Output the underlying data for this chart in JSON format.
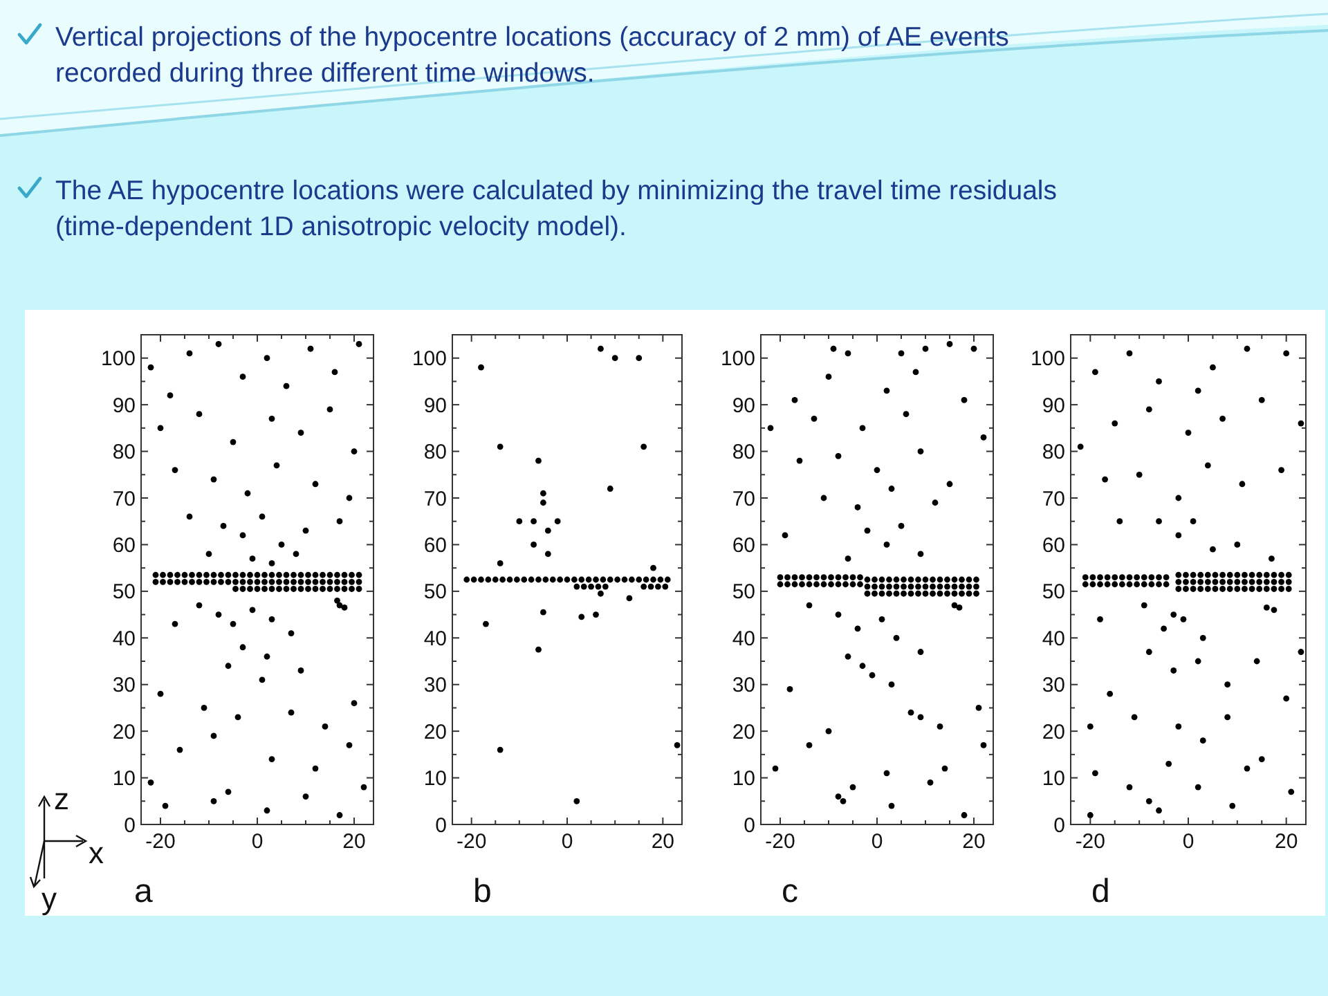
{
  "chart_data": [
    {
      "type": "other",
      "annotations": [
        "Vertical projections of the hypocentre locations (accuracy of 2 mm) of AE events recorded during three different time windows.",
        "The AE hypocentre locations were calculated by minimizing the travel time residuals (time-dependent 1D anisotropic velocity model)."
      ]
    },
    {
      "type": "scatter",
      "title": "a",
      "annotations": [
        "z",
        "x",
        "y"
      ],
      "xlim": [
        -24,
        24
      ],
      "ylim": [
        0,
        105
      ],
      "xticks": [
        -20,
        {
          "value": -15,
          "label": null
        },
        {
          "value": -10,
          "label": null
        },
        {
          "value": -5,
          "label": null
        },
        0,
        {
          "value": 5,
          "label": null
        },
        {
          "value": 10,
          "label": null
        },
        {
          "value": 15,
          "label": null
        },
        20
      ],
      "yticks": [
        0,
        {
          "value": 5,
          "label": null
        },
        10,
        {
          "value": 15,
          "label": null
        },
        20,
        {
          "value": 25,
          "label": null
        },
        30,
        {
          "value": 35,
          "label": null
        },
        40,
        {
          "value": 45,
          "label": null
        },
        50,
        {
          "value": 55,
          "label": null
        },
        60,
        {
          "value": 65,
          "label": null
        },
        70,
        {
          "value": 75,
          "label": null
        },
        80,
        {
          "value": 85,
          "label": null
        },
        90,
        {
          "value": 95,
          "label": null
        },
        100
      ],
      "marker": "circle",
      "series": [
        {
          "color": "#000000",
          "x": [
            -21,
            -19.5,
            -18,
            -16.5,
            -15,
            -13.5,
            -12,
            -10.5,
            -9,
            -7.5,
            -6,
            -4.5,
            -3,
            -1.5,
            0,
            1.5,
            3,
            4.5,
            6,
            7.5,
            9,
            10.5,
            12,
            13.5,
            15,
            16.5,
            18,
            19.5,
            21
          ],
          "values": [
            53.5,
            53.5,
            53.5,
            53.5,
            53.5,
            53.5,
            53.5,
            53.5,
            53.5,
            53.5,
            53.5,
            53.5,
            53.5,
            53.5,
            53.5,
            53.5,
            53.5,
            53.5,
            53.5,
            53.5,
            53.5,
            53.5,
            53.5,
            53.5,
            53.5,
            53.5,
            53.5,
            53.5,
            53.5
          ]
        },
        {
          "color": "#000000",
          "x": [
            -21,
            -19.5,
            -18,
            -16.5,
            -15,
            -13.5,
            -12,
            -10.5,
            -9,
            -7.5,
            -6,
            -4.5,
            -3,
            -1.5,
            0,
            1.5,
            3,
            4.5,
            6,
            7.5,
            9,
            10.5,
            12,
            13.5,
            15,
            16.5,
            18,
            19.5,
            21
          ],
          "values": [
            52,
            52,
            52,
            52,
            52,
            52,
            52,
            52,
            52,
            52,
            52,
            52,
            52,
            52,
            52,
            52,
            52,
            52,
            52,
            52,
            52,
            52,
            52,
            52,
            52,
            52,
            52,
            52,
            52
          ]
        },
        {
          "color": "#000000",
          "x": [
            -4.5,
            -3,
            -1.5,
            0,
            1.5,
            3,
            4.5,
            6,
            7.5,
            9,
            10.5,
            12,
            13.5,
            15,
            16.5,
            18,
            19.5,
            21
          ],
          "values": [
            50.5,
            50.5,
            50.5,
            50.5,
            50.5,
            50.5,
            50.5,
            50.5,
            50.5,
            50.5,
            50.5,
            50.5,
            50.5,
            50.5,
            50.5,
            50.5,
            50.5,
            50.5
          ]
        },
        {
          "color": "#000000",
          "x": [
            -22,
            -18,
            -14,
            -8,
            -3,
            2,
            6,
            11,
            16,
            21,
            -20,
            -12,
            -5,
            3,
            9,
            15,
            20,
            -17,
            -9,
            -2,
            4,
            12,
            19,
            -14,
            -7,
            -3,
            1,
            5,
            10,
            17,
            -10,
            -1,
            3,
            8,
            -12,
            -8,
            -5,
            -1,
            3,
            7,
            -17,
            -3,
            2,
            -6,
            9,
            1,
            -20,
            -11,
            -4,
            7,
            14,
            20,
            -16,
            -9,
            3,
            12,
            19,
            -19,
            -9,
            -6,
            2,
            10,
            17,
            -22,
            22,
            17,
            18,
            16.5
          ],
          "values": [
            98,
            92,
            101,
            103,
            96,
            100,
            94,
            102,
            97,
            103,
            85,
            88,
            82,
            87,
            84,
            89,
            80,
            76,
            74,
            71,
            77,
            73,
            70,
            66,
            64,
            62,
            66,
            60,
            63,
            65,
            58,
            57,
            56,
            58,
            47,
            45,
            43,
            46,
            44,
            41,
            43,
            38,
            36,
            34,
            33,
            31,
            28,
            25,
            23,
            24,
            21,
            26,
            16,
            19,
            14,
            12,
            17,
            4,
            5,
            7,
            3,
            6,
            2,
            9,
            8,
            47,
            46.5,
            48
          ]
        }
      ]
    },
    {
      "type": "scatter",
      "title": "b",
      "xlim": [
        -24,
        24
      ],
      "ylim": [
        0,
        105
      ],
      "xticks": [
        -20,
        {
          "value": -15,
          "label": null
        },
        {
          "value": -10,
          "label": null
        },
        {
          "value": -5,
          "label": null
        },
        0,
        {
          "value": 5,
          "label": null
        },
        {
          "value": 10,
          "label": null
        },
        {
          "value": 15,
          "label": null
        },
        20
      ],
      "yticks": [
        0,
        {
          "value": 5,
          "label": null
        },
        10,
        {
          "value": 15,
          "label": null
        },
        20,
        {
          "value": 25,
          "label": null
        },
        30,
        {
          "value": 35,
          "label": null
        },
        40,
        {
          "value": 45,
          "label": null
        },
        50,
        {
          "value": 55,
          "label": null
        },
        60,
        {
          "value": 65,
          "label": null
        },
        70,
        {
          "value": 75,
          "label": null
        },
        80,
        {
          "value": 85,
          "label": null
        },
        90,
        {
          "value": 95,
          "label": null
        },
        100
      ],
      "marker": "circle",
      "series": [
        {
          "color": "#000000",
          "x": [
            -21,
            -19.5,
            -18,
            -16.5,
            -15,
            -13.5,
            -12,
            -10.5,
            -9,
            -7.5,
            -6,
            -4.5,
            -3,
            -1.5,
            0,
            1.5,
            3,
            4.5,
            6,
            7.5,
            9,
            10.5,
            12,
            13.5,
            15,
            16.5,
            18,
            19.5,
            21
          ],
          "values": [
            52.5,
            52.5,
            52.5,
            52.5,
            52.5,
            52.5,
            52.5,
            52.5,
            52.5,
            52.5,
            52.5,
            52.5,
            52.5,
            52.5,
            52.5,
            52.5,
            52.5,
            52.5,
            52.5,
            52.5,
            52.5,
            52.5,
            52.5,
            52.5,
            52.5,
            52.5,
            52.5,
            52.5,
            52.5
          ]
        },
        {
          "color": "#000000",
          "x": [
            2,
            3.5,
            5,
            6.5,
            8,
            16,
            17.5,
            19,
            20.5
          ],
          "values": [
            51,
            51,
            51,
            51,
            51,
            51,
            51,
            51,
            51
          ]
        },
        {
          "color": "#000000",
          "x": [
            -18,
            7,
            10,
            15,
            -14,
            16,
            -6,
            9,
            -5,
            -5,
            -10,
            -7,
            -2,
            -4,
            -7,
            -4,
            -14,
            18,
            -17,
            -5,
            3,
            6,
            -6,
            -14,
            2,
            23,
            7,
            13
          ],
          "values": [
            98,
            102,
            100,
            100,
            81,
            81,
            78,
            72,
            71,
            69,
            65,
            65,
            65,
            63,
            60,
            58,
            56,
            55,
            43,
            45.5,
            44.5,
            45,
            37.5,
            16,
            5,
            17,
            49.5,
            48.5
          ]
        }
      ]
    },
    {
      "type": "scatter",
      "title": "c",
      "xlim": [
        -24,
        24
      ],
      "ylim": [
        0,
        105
      ],
      "xticks": [
        -20,
        {
          "value": -15,
          "label": null
        },
        {
          "value": -10,
          "label": null
        },
        {
          "value": -5,
          "label": null
        },
        0,
        {
          "value": 5,
          "label": null
        },
        {
          "value": 10,
          "label": null
        },
        {
          "value": 15,
          "label": null
        },
        20
      ],
      "yticks": [
        0,
        {
          "value": 5,
          "label": null
        },
        10,
        {
          "value": 15,
          "label": null
        },
        20,
        {
          "value": 25,
          "label": null
        },
        30,
        {
          "value": 35,
          "label": null
        },
        40,
        {
          "value": 45,
          "label": null
        },
        50,
        {
          "value": 55,
          "label": null
        },
        60,
        {
          "value": 65,
          "label": null
        },
        70,
        {
          "value": 75,
          "label": null
        },
        80,
        {
          "value": 85,
          "label": null
        },
        90,
        {
          "value": 95,
          "label": null
        },
        100
      ],
      "marker": "circle",
      "series": [
        {
          "color": "#000000",
          "x": [
            -20,
            -18.5,
            -17,
            -15.5,
            -14,
            -12.5,
            -11,
            -9.5,
            -8,
            -6.5,
            -5,
            -3.5
          ],
          "values": [
            53,
            53,
            53,
            53,
            53,
            53,
            53,
            53,
            53,
            53,
            53,
            53
          ]
        },
        {
          "color": "#000000",
          "x": [
            -20,
            -18.5,
            -17,
            -15.5,
            -14,
            -12.5,
            -11,
            -9.5,
            -8,
            -6.5,
            -5,
            -3.5
          ],
          "values": [
            51.5,
            51.5,
            51.5,
            51.5,
            51.5,
            51.5,
            51.5,
            51.5,
            51.5,
            51.5,
            51.5,
            51.5
          ]
        },
        {
          "color": "#000000",
          "x": [
            -2,
            -0.5,
            1,
            2.5,
            4,
            5.5,
            7,
            8.5,
            10,
            11.5,
            13,
            14.5,
            16,
            17.5,
            19,
            20.5
          ],
          "values": [
            52.5,
            52.5,
            52.5,
            52.5,
            52.5,
            52.5,
            52.5,
            52.5,
            52.5,
            52.5,
            52.5,
            52.5,
            52.5,
            52.5,
            52.5,
            52.5
          ]
        },
        {
          "color": "#000000",
          "x": [
            -2,
            -0.5,
            1,
            2.5,
            4,
            5.5,
            7,
            8.5,
            10,
            11.5,
            13,
            14.5,
            16,
            17.5,
            19,
            20.5
          ],
          "values": [
            51,
            51,
            51,
            51,
            51,
            51,
            51,
            51,
            51,
            51,
            51,
            51,
            51,
            51,
            51,
            51
          ]
        },
        {
          "color": "#000000",
          "x": [
            -2,
            -0.5,
            1,
            2.5,
            4,
            5.5,
            7,
            8.5,
            10,
            11.5,
            13,
            14.5,
            16,
            17.5,
            19,
            20.5
          ],
          "values": [
            49.5,
            49.5,
            49.5,
            49.5,
            49.5,
            49.5,
            49.5,
            49.5,
            49.5,
            49.5,
            49.5,
            49.5,
            49.5,
            49.5,
            49.5,
            49.5
          ]
        },
        {
          "color": "#000000",
          "x": [
            -9,
            -6,
            5,
            10,
            15,
            20,
            -17,
            -10,
            2,
            8,
            18,
            -22,
            -13,
            -3,
            6,
            22,
            -16,
            -8,
            0,
            9,
            15,
            -11,
            -4,
            3,
            12,
            -19,
            -2,
            2,
            5,
            -6,
            9,
            -14,
            -8,
            -4,
            1,
            4,
            9,
            -6,
            -1,
            3,
            -3,
            -18,
            -10,
            -14,
            7,
            9,
            13,
            21,
            -21,
            -7,
            -5,
            3,
            2,
            14,
            18,
            22,
            -8,
            11,
            16,
            17
          ],
          "values": [
            102,
            101,
            101,
            102,
            103,
            102,
            91,
            96,
            93,
            97,
            91,
            85,
            87,
            85,
            88,
            83,
            78,
            79,
            76,
            80,
            73,
            70,
            68,
            72,
            69,
            62,
            63,
            60,
            64,
            57,
            58,
            47,
            45,
            42,
            44,
            40,
            37,
            36,
            32,
            30,
            34,
            29,
            20,
            17,
            24,
            23,
            21,
            25,
            12,
            5,
            8,
            4,
            11,
            12,
            2,
            17,
            6,
            9,
            47,
            46.5
          ]
        }
      ]
    },
    {
      "type": "scatter",
      "title": "d",
      "xlim": [
        -24,
        24
      ],
      "ylim": [
        0,
        105
      ],
      "xticks": [
        -20,
        {
          "value": -15,
          "label": null
        },
        {
          "value": -10,
          "label": null
        },
        {
          "value": -5,
          "label": null
        },
        0,
        {
          "value": 5,
          "label": null
        },
        {
          "value": 10,
          "label": null
        },
        {
          "value": 15,
          "label": null
        },
        20
      ],
      "yticks": [
        0,
        {
          "value": 5,
          "label": null
        },
        10,
        {
          "value": 15,
          "label": null
        },
        20,
        {
          "value": 25,
          "label": null
        },
        30,
        {
          "value": 35,
          "label": null
        },
        40,
        {
          "value": 45,
          "label": null
        },
        50,
        {
          "value": 55,
          "label": null
        },
        60,
        {
          "value": 65,
          "label": null
        },
        70,
        {
          "value": 75,
          "label": null
        },
        80,
        {
          "value": 85,
          "label": null
        },
        90,
        {
          "value": 95,
          "label": null
        },
        100
      ],
      "marker": "circle",
      "series": [
        {
          "color": "#000000",
          "x": [
            -21,
            -19.5,
            -18,
            -16.5,
            -15,
            -13.5,
            -12,
            -10.5,
            -9,
            -7.5,
            -6,
            -4.5
          ],
          "values": [
            53,
            53,
            53,
            53,
            53,
            53,
            53,
            53,
            53,
            53,
            53,
            53
          ]
        },
        {
          "color": "#000000",
          "x": [
            -21,
            -19.5,
            -18,
            -16.5,
            -15,
            -13.5,
            -12,
            -10.5,
            -9,
            -7.5,
            -6,
            -4.5
          ],
          "values": [
            51.5,
            51.5,
            51.5,
            51.5,
            51.5,
            51.5,
            51.5,
            51.5,
            51.5,
            51.5,
            51.5,
            51.5
          ]
        },
        {
          "color": "#000000",
          "x": [
            -2,
            -0.5,
            1,
            2.5,
            4,
            5.5,
            7,
            8.5,
            10,
            11.5,
            13,
            14.5,
            16,
            17.5,
            19,
            20.5
          ],
          "values": [
            53.5,
            53.5,
            53.5,
            53.5,
            53.5,
            53.5,
            53.5,
            53.5,
            53.5,
            53.5,
            53.5,
            53.5,
            53.5,
            53.5,
            53.5,
            53.5
          ]
        },
        {
          "color": "#000000",
          "x": [
            -2,
            -0.5,
            1,
            2.5,
            4,
            5.5,
            7,
            8.5,
            10,
            11.5,
            13,
            14.5,
            16,
            17.5,
            19,
            20.5
          ],
          "values": [
            52,
            52,
            52,
            52,
            52,
            52,
            52,
            52,
            52,
            52,
            52,
            52,
            52,
            52,
            52,
            52
          ]
        },
        {
          "color": "#000000",
          "x": [
            -2,
            -0.5,
            1,
            2.5,
            4,
            5.5,
            7,
            8.5,
            10,
            11.5,
            13,
            14.5,
            16,
            17.5,
            19,
            20.5
          ],
          "values": [
            50.5,
            50.5,
            50.5,
            50.5,
            50.5,
            50.5,
            50.5,
            50.5,
            50.5,
            50.5,
            50.5,
            50.5,
            50.5,
            50.5,
            50.5,
            50.5
          ]
        },
        {
          "color": "#000000",
          "x": [
            -19,
            -12,
            -6,
            2,
            5,
            12,
            20,
            -22,
            -15,
            -8,
            0,
            7,
            15,
            23,
            -17,
            -10,
            -2,
            4,
            11,
            19,
            -14,
            -6,
            -2,
            1,
            5,
            10,
            17,
            -18,
            -9,
            -5,
            -1,
            3,
            -8,
            -3,
            2,
            8,
            14,
            23,
            -20,
            -16,
            -11,
            -2,
            8,
            3,
            15,
            20,
            -19,
            -12,
            -8,
            -4,
            2,
            9,
            12,
            -20,
            21,
            -6,
            16,
            17.5,
            -3
          ],
          "values": [
            97,
            101,
            95,
            93,
            98,
            102,
            101,
            81,
            86,
            89,
            84,
            87,
            91,
            86,
            74,
            75,
            70,
            77,
            73,
            76,
            65,
            65,
            62,
            65,
            59,
            60,
            57,
            44,
            47,
            42,
            44,
            40,
            37,
            33,
            35,
            30,
            35,
            37,
            21,
            28,
            23,
            21,
            23,
            18,
            14,
            27,
            11,
            8,
            5,
            13,
            8,
            4,
            12,
            2,
            7,
            3,
            46.5,
            46,
            45
          ]
        }
      ]
    }
  ]
}
